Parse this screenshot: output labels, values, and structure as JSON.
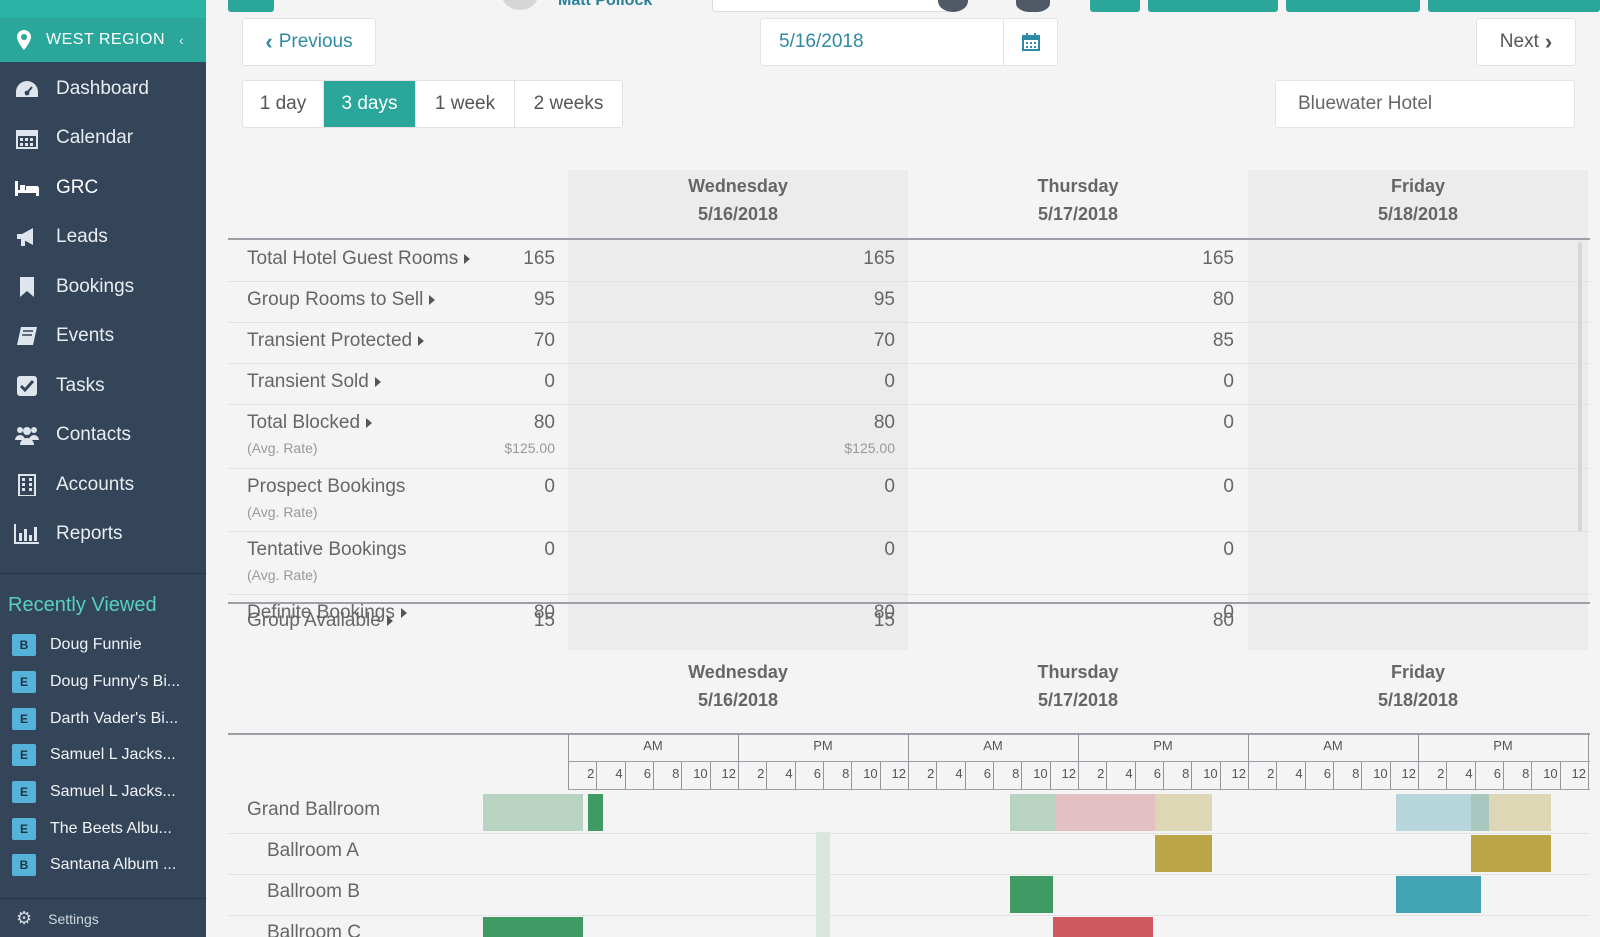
{
  "topbar": {
    "user_name": "Matt Pollock"
  },
  "sidebar": {
    "region": "WEST REGION",
    "nav": [
      {
        "label": "Dashboard",
        "icon": "dashboard-icon"
      },
      {
        "label": "Calendar",
        "icon": "calendar-icon"
      },
      {
        "label": "GRC",
        "icon": "bed-icon"
      },
      {
        "label": "Leads",
        "icon": "bullhorn-icon"
      },
      {
        "label": "Bookings",
        "icon": "bookmark-icon"
      },
      {
        "label": "Events",
        "icon": "book-icon"
      },
      {
        "label": "Tasks",
        "icon": "checkbox-icon"
      },
      {
        "label": "Contacts",
        "icon": "users-icon"
      },
      {
        "label": "Accounts",
        "icon": "building-icon"
      },
      {
        "label": "Reports",
        "icon": "bar-chart-icon"
      }
    ],
    "active": "GRC",
    "recent_title": "Recently Viewed",
    "recent": [
      {
        "badge": "B",
        "label": "Doug Funnie"
      },
      {
        "badge": "E",
        "label": "Doug Funny's Bi..."
      },
      {
        "badge": "E",
        "label": "Darth Vader's Bi..."
      },
      {
        "badge": "E",
        "label": "Samuel L Jacks..."
      },
      {
        "badge": "E",
        "label": "Samuel L Jacks..."
      },
      {
        "badge": "E",
        "label": "The Beets Albu..."
      },
      {
        "badge": "B",
        "label": "Santana Album ..."
      }
    ],
    "bottom_label": "Settings"
  },
  "toolbar": {
    "previous_label": "Previous",
    "next_label": "Next",
    "date": "5/16/2018",
    "ranges": [
      "1 day",
      "3 days",
      "1 week",
      "2 weeks"
    ],
    "active_range": "3 days",
    "hotel": "Bluewater Hotel"
  },
  "days": [
    {
      "weekday": "Wednesday",
      "date": "5/16/2018"
    },
    {
      "weekday": "Thursday",
      "date": "5/17/2018"
    },
    {
      "weekday": "Friday",
      "date": "5/18/2018"
    }
  ],
  "rows": [
    {
      "label": "Total Hotel Guest Rooms",
      "caret": true,
      "values": [
        "165",
        "165",
        "165"
      ]
    },
    {
      "label": "Group Rooms to Sell",
      "caret": true,
      "values": [
        "95",
        "95",
        "80"
      ]
    },
    {
      "label": "Transient Protected",
      "caret": true,
      "values": [
        "70",
        "70",
        "85"
      ]
    },
    {
      "label": "Transient Sold",
      "caret": true,
      "values": [
        "0",
        "0",
        "0"
      ]
    },
    {
      "label": "Total Blocked",
      "caret": true,
      "sub": "(Avg. Rate)",
      "values": [
        "80",
        "80",
        "0"
      ],
      "rates": [
        "$125.00",
        "$125.00",
        ""
      ]
    },
    {
      "label": "Prospect Bookings",
      "caret": false,
      "sub": "(Avg. Rate)",
      "values": [
        "0",
        "0",
        "0"
      ],
      "rates": [
        "",
        "",
        ""
      ]
    },
    {
      "label": "Tentative Bookings",
      "caret": false,
      "sub": "(Avg. Rate)",
      "values": [
        "0",
        "0",
        "0"
      ],
      "rates": [
        "",
        "",
        ""
      ]
    },
    {
      "label": "Definite Bookings",
      "caret": true,
      "values": [
        "80",
        "80",
        "0"
      ]
    }
  ],
  "group_available": {
    "label": "Group Available",
    "values": [
      "15",
      "15",
      "80"
    ]
  },
  "time_grid": {
    "am_label": "AM",
    "pm_label": "PM",
    "ticks": [
      "2",
      "4",
      "6",
      "8",
      "10",
      "12"
    ]
  },
  "rooms": [
    "Grand Ballroom",
    "Ballroom A",
    "Ballroom B",
    "Ballroom C"
  ],
  "colors": {
    "accent": "#2aa69a",
    "sidebar": "#34455a",
    "link": "#2f8aa6",
    "green_dark": "#3f9a64",
    "green_light": "#b9d3c2",
    "red": "#d0595f",
    "red_light": "#e3c0c4",
    "olive": "#bba549",
    "olive_light": "#ddd7b6",
    "teal": "#41a3b3",
    "teal_light": "#b7d6dc"
  }
}
